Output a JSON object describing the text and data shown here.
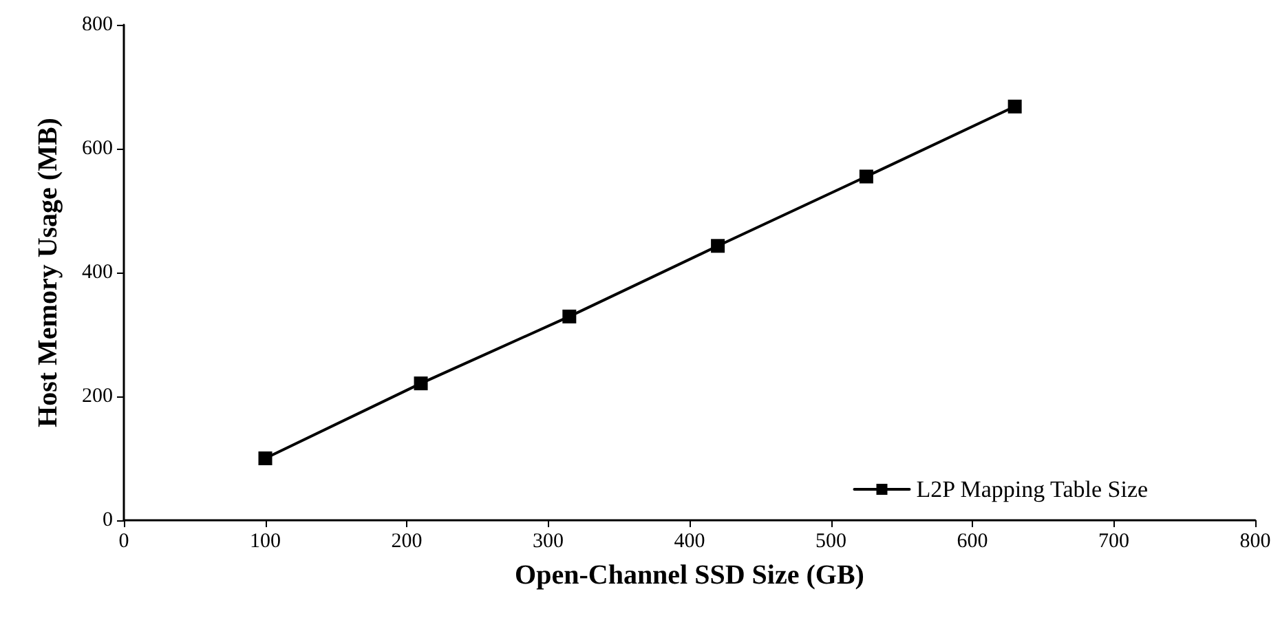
{
  "chart_data": {
    "type": "line",
    "xlabel": "Open-Channel SSD Size (GB)",
    "ylabel": "Host Memory Usage (MB)",
    "x": [
      100,
      210,
      315,
      420,
      525,
      630
    ],
    "series": [
      {
        "name": "L2P Mapping Table Size",
        "color": "#000000",
        "values": [
          100,
          221,
          329,
          443,
          555,
          668
        ]
      }
    ],
    "xlim": [
      0,
      800
    ],
    "xticks": [
      0,
      100,
      200,
      300,
      400,
      500,
      600,
      700,
      800
    ],
    "ylim": [
      0,
      800
    ],
    "yticks": [
      0,
      200,
      400,
      600,
      800
    ],
    "grid": false,
    "legend": "bottom right",
    "marker": "square",
    "line_style": "solid"
  }
}
